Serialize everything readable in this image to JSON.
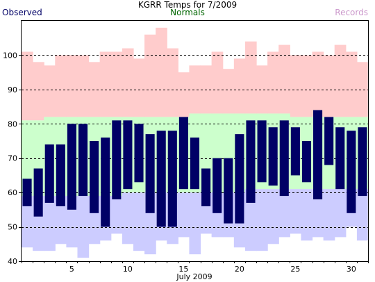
{
  "title": "KGRR Temps for 7/2009",
  "legend": {
    "observed": "Observed",
    "normals": "Normals",
    "records": "Records"
  },
  "colors": {
    "observed": "#000066",
    "normals_text": "#006600",
    "records_text": "#cc99cc",
    "record_high_fill": "#ffcccc",
    "normal_fill": "#ccffcc",
    "record_low_fill": "#ccccff",
    "grid": "#000000"
  },
  "chart_data": {
    "type": "bar",
    "xlabel": "July 2009",
    "x": [
      1,
      2,
      3,
      4,
      5,
      6,
      7,
      8,
      9,
      10,
      11,
      12,
      13,
      14,
      15,
      16,
      17,
      18,
      19,
      20,
      21,
      22,
      23,
      24,
      25,
      26,
      27,
      28,
      29,
      30,
      31
    ],
    "x_ticks": [
      5,
      10,
      15,
      20,
      25,
      30
    ],
    "y_ticks": [
      40,
      50,
      60,
      70,
      80,
      90,
      100
    ],
    "ylim": [
      40,
      110
    ],
    "grid": "dashed horizontal",
    "series": [
      {
        "name": "Observed",
        "high": [
          64,
          67,
          74,
          74,
          80,
          80,
          75,
          76,
          81,
          81,
          80,
          77,
          78,
          78,
          82,
          76,
          67,
          70,
          70,
          77,
          81,
          81,
          79,
          81,
          79,
          75,
          84,
          82,
          79,
          78,
          79
        ],
        "low": [
          56,
          53,
          57,
          56,
          55,
          59,
          54,
          50,
          58,
          61,
          63,
          54,
          50,
          50,
          61,
          61,
          56,
          54,
          51,
          51,
          57,
          63,
          62,
          59,
          65,
          63,
          58,
          68,
          61,
          54,
          59
        ]
      },
      {
        "name": "Normals",
        "high": [
          81,
          81,
          82,
          82,
          82,
          82,
          82,
          82,
          82,
          82,
          82,
          82,
          82,
          82,
          82,
          83,
          83,
          83,
          83,
          83,
          83,
          83,
          83,
          83,
          82,
          82,
          82,
          82,
          82,
          82,
          82
        ],
        "low": [
          59,
          59,
          59,
          59,
          59,
          59,
          59,
          59,
          59,
          60,
          60,
          60,
          60,
          60,
          60,
          60,
          60,
          60,
          60,
          60,
          61,
          61,
          61,
          61,
          61,
          61,
          61,
          61,
          61,
          61,
          61
        ]
      },
      {
        "name": "Records",
        "high": [
          101,
          98,
          97,
          100,
          100,
          100,
          98,
          101,
          101,
          102,
          99,
          106,
          108,
          102,
          95,
          97,
          97,
          101,
          96,
          99,
          104,
          97,
          101,
          103,
          100,
          100,
          101,
          100,
          103,
          101,
          98
        ],
        "low": [
          44,
          43,
          43,
          45,
          44,
          41,
          45,
          46,
          48,
          45,
          43,
          42,
          46,
          45,
          47,
          42,
          48,
          47,
          47,
          44,
          43,
          43,
          45,
          47,
          48,
          46,
          47,
          46,
          47,
          50,
          46
        ]
      }
    ]
  }
}
